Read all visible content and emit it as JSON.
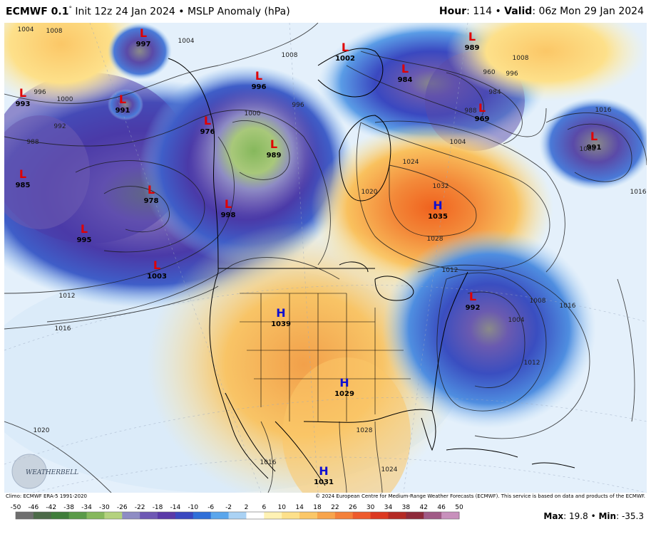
{
  "header": {
    "model": "ECMWF 0.1",
    "degree": "°",
    "init": "Init 12z 24 Jan 2024",
    "bullet": "•",
    "product": "MSLP Anomaly (hPa)",
    "hour_label": "Hour",
    "hour_value": "114",
    "valid_label": "Valid",
    "valid_value": "06z Mon 29 Jan 2024"
  },
  "footer": {
    "climo": "Climo: ECMWF ERA-5 1991-2020",
    "copyright": "© 2024 European Centre for Medium-Range Weather Forecasts (ECMWF). This service is based on data and products of the ECMWF.",
    "max_label": "Max",
    "max_value": "19.8",
    "min_label": "Min",
    "min_value": "-35.3"
  },
  "logo": {
    "text": "WEATHERBELL"
  },
  "colorbar": {
    "ticks": [
      "-50",
      "-46",
      "-42",
      "-38",
      "-34",
      "-30",
      "-26",
      "-22",
      "-18",
      "-14",
      "-10",
      "-6",
      "-2",
      "2",
      "6",
      "10",
      "14",
      "18",
      "22",
      "26",
      "30",
      "34",
      "38",
      "42",
      "46",
      "50"
    ],
    "colors": [
      "#6e6e6e",
      "#4c6a48",
      "#3f7d3a",
      "#5a9a48",
      "#86b85c",
      "#b4d27e",
      "#8e8cc4",
      "#6e58b4",
      "#5a3aa8",
      "#3a48c0",
      "#2f6fd8",
      "#5aa6ec",
      "#aad2f4",
      "#ffffff",
      "#fff2b4",
      "#fde08a",
      "#fbc767",
      "#f8a44c",
      "#f4803a",
      "#ee5a2c",
      "#dc3820",
      "#b42a24",
      "#8e2a3a",
      "#a05a86",
      "#c890bc"
    ]
  },
  "pressure_centers": [
    {
      "type": "L",
      "value": "997"
    },
    {
      "type": "L",
      "value": "993"
    },
    {
      "type": "L",
      "value": "991"
    },
    {
      "type": "L",
      "value": "985"
    },
    {
      "type": "L",
      "value": "978"
    },
    {
      "type": "L",
      "value": "995"
    },
    {
      "type": "L",
      "value": "1003"
    },
    {
      "type": "L",
      "value": "996"
    },
    {
      "type": "L",
      "value": "976"
    },
    {
      "type": "L",
      "value": "989"
    },
    {
      "type": "L",
      "value": "998"
    },
    {
      "type": "L",
      "value": "1002"
    },
    {
      "type": "L",
      "value": "984"
    },
    {
      "type": "L",
      "value": "989"
    },
    {
      "type": "L",
      "value": "969"
    },
    {
      "type": "L",
      "value": "991"
    },
    {
      "type": "L",
      "value": "992"
    },
    {
      "type": "H",
      "value": "1035"
    },
    {
      "type": "H",
      "value": "1039"
    },
    {
      "type": "H",
      "value": "1029"
    },
    {
      "type": "H",
      "value": "1031"
    }
  ],
  "isobar_labels": [
    "1004",
    "1008",
    "996",
    "1000",
    "992",
    "988",
    "1004",
    "1012",
    "1016",
    "1008",
    "1000",
    "996",
    "1024",
    "1032",
    "1020",
    "1028",
    "1012",
    "1016",
    "1024",
    "1028",
    "1016",
    "1020",
    "960",
    "984",
    "988",
    "1004",
    "1008",
    "996",
    "1000",
    "1004",
    "1012",
    "1008",
    "1016",
    "1016"
  ]
}
